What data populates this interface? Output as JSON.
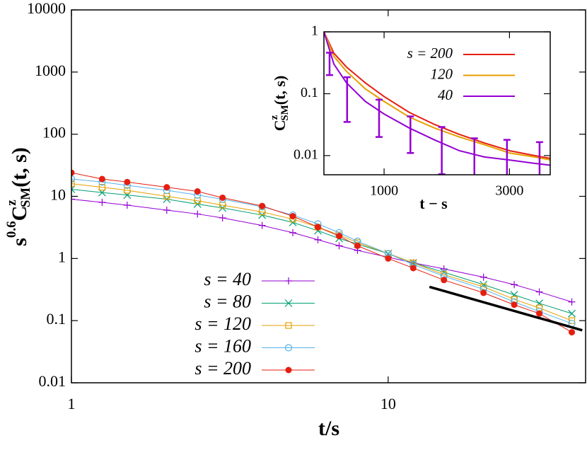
{
  "chart_data": [
    {
      "type": "line",
      "log_x": true,
      "log_y": true,
      "xlabel": "t/s",
      "ylabel": [
        "s",
        "0.6",
        "C",
        "z",
        "SM",
        "(t, s)"
      ],
      "xlim": [
        1,
        42
      ],
      "xticks": [
        1,
        10
      ],
      "ylim": [
        0.01,
        10000
      ],
      "yticks": [
        0.01,
        0.1,
        1,
        10,
        100,
        1000,
        10000
      ],
      "legend": "bottom-left",
      "series": [
        {
          "name": "s = 40",
          "color": "#9400d3",
          "marker": "plus",
          "x": [
            1,
            1.25,
            1.5,
            2,
            2.5,
            3,
            4,
            5,
            6,
            7,
            8,
            10,
            12,
            15,
            20,
            25,
            30,
            38
          ],
          "values": [
            9,
            8,
            7.2,
            6,
            5.2,
            4.5,
            3.4,
            2.6,
            2.0,
            1.6,
            1.35,
            1.05,
            0.85,
            0.68,
            0.5,
            0.38,
            0.29,
            0.2
          ]
        },
        {
          "name": "s = 80",
          "color": "#009e73",
          "marker": "cross",
          "x": [
            1,
            1.25,
            1.5,
            2,
            2.5,
            3,
            4,
            5,
            6,
            7,
            8,
            10,
            12,
            15,
            20,
            25,
            30,
            38
          ],
          "values": [
            13,
            11.5,
            10.5,
            9,
            7.5,
            6.5,
            5.0,
            3.8,
            2.8,
            2.1,
            1.7,
            1.2,
            0.85,
            0.6,
            0.38,
            0.26,
            0.19,
            0.13
          ]
        },
        {
          "name": "s = 120",
          "color": "#e69f00",
          "marker": "square",
          "x": [
            1,
            1.25,
            1.5,
            2,
            2.5,
            3,
            4,
            5,
            6,
            7,
            8,
            10,
            12,
            15,
            20,
            25,
            30,
            38
          ],
          "values": [
            16,
            14,
            12.5,
            10,
            8.5,
            7.2,
            5.6,
            4.3,
            3.2,
            2.4,
            1.8,
            1.2,
            0.85,
            0.55,
            0.35,
            0.22,
            0.16,
            0.1
          ]
        },
        {
          "name": "s = 160",
          "color": "#56b4e9",
          "marker": "circle",
          "x": [
            1,
            1.25,
            1.5,
            2,
            2.5,
            3,
            4,
            5,
            6,
            7,
            8,
            10,
            12,
            15,
            20,
            25,
            30,
            38
          ],
          "values": [
            19,
            17,
            15,
            12.5,
            10.5,
            9,
            6.8,
            5.0,
            3.6,
            2.6,
            1.9,
            1.2,
            0.8,
            0.52,
            0.32,
            0.2,
            0.14,
            0.09
          ]
        },
        {
          "name": "s = 200",
          "color": "#e51e10",
          "marker": "filled-circle",
          "x": [
            1,
            1.25,
            1.5,
            2,
            2.5,
            3,
            4,
            5,
            6,
            7,
            8,
            10,
            12,
            15,
            20,
            25,
            30,
            38
          ],
          "values": [
            24,
            19,
            17,
            14,
            12,
            9.5,
            7,
            4.8,
            3.2,
            2.3,
            1.6,
            1.0,
            0.7,
            0.45,
            0.28,
            0.18,
            0.13,
            0.065
          ]
        }
      ],
      "reference_line": {
        "color": "#000000",
        "x": [
          13.5,
          41
        ],
        "values": [
          0.35,
          0.07
        ]
      }
    },
    {
      "type": "line",
      "log_y": true,
      "xlabel": "t − s",
      "ylabel": [
        "C",
        "z",
        "SM",
        "(t, s)"
      ],
      "xlim": [
        40,
        3650
      ],
      "xticks": [
        1000,
        3000
      ],
      "ylim": [
        0.0049,
        1
      ],
      "yticks": [
        0.01,
        0.1,
        1
      ],
      "legend": "top-right",
      "series": [
        {
          "name": "s = 200",
          "color": "#e51e10",
          "x": [
            40,
            200,
            400,
            700,
            1000,
            1400,
            1800,
            2200,
            2600,
            3000,
            3400,
            3650
          ],
          "values": [
            1,
            0.45,
            0.27,
            0.15,
            0.09,
            0.05,
            0.032,
            0.022,
            0.016,
            0.012,
            0.01,
            0.009
          ]
        },
        {
          "name": "120",
          "color": "#e69f00",
          "x": [
            40,
            200,
            400,
            700,
            1000,
            1400,
            1800,
            2200,
            2600,
            3000,
            3400,
            3650
          ],
          "values": [
            1,
            0.4,
            0.23,
            0.12,
            0.075,
            0.042,
            0.028,
            0.02,
            0.015,
            0.011,
            0.0095,
            0.0085
          ]
        },
        {
          "name": "40",
          "color": "#9400d3",
          "x": [
            40,
            200,
            400,
            700,
            1000,
            1400,
            1800,
            2200,
            2600,
            3000,
            3400,
            3650
          ],
          "values": [
            1,
            0.3,
            0.15,
            0.075,
            0.047,
            0.028,
            0.018,
            0.012,
            0.0095,
            0.0085,
            0.0075,
            0.007
          ]
        }
      ],
      "error_bars": {
        "color": "#9400d3",
        "x": [
          130,
          410,
          920,
          1420,
          1920,
          2440,
          2960,
          3480
        ],
        "values": [
          0.33,
          0.11,
          0.05,
          0.027,
          0.017,
          0.011,
          0.0085,
          0.007
        ],
        "errors": [
          0.13,
          0.075,
          0.03,
          0.016,
          0.012,
          0.008,
          0.0095,
          0.0095
        ]
      }
    }
  ]
}
